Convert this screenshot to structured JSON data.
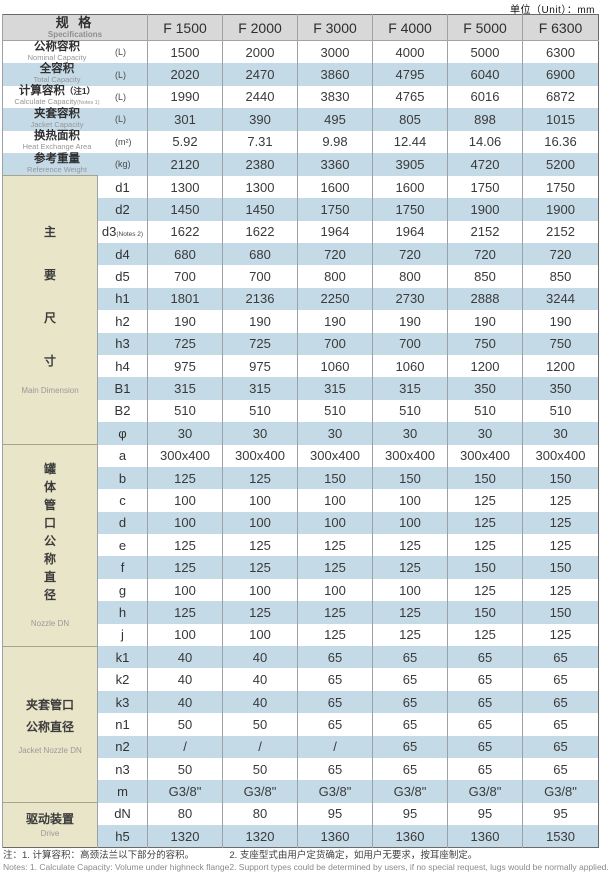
{
  "unit_note": "单位（Unit）：mm",
  "colors": {
    "stripe_blue": "#c5dae7",
    "section_beige": "#e9e5c9",
    "header_gray": "#d8d8d8",
    "border_dark": "#6a6a6a",
    "border_light": "#9aa2a8"
  },
  "header": {
    "spec_zh": "规 格",
    "spec_en": "Specifications",
    "models": [
      "F 1500",
      "F 2000",
      "F 3000",
      "F 4000",
      "F 5000",
      "F 6300"
    ]
  },
  "capacity_rows": [
    {
      "zh": "公称容积",
      "en": "Nominal Capacity",
      "unit": "(L)",
      "values": [
        "1500",
        "2000",
        "3000",
        "4000",
        "5000",
        "6300"
      ]
    },
    {
      "zh": "全容积",
      "en": "Total Capacity",
      "unit": "(L)",
      "values": [
        "2020",
        "2470",
        "3860",
        "4795",
        "6040",
        "6900"
      ]
    },
    {
      "zh": "计算容积",
      "zh_note": "（注1）",
      "en": "Calculate Capacity",
      "en_note": "(Notes 1)",
      "unit": "(L)",
      "values": [
        "1990",
        "2440",
        "3830",
        "4765",
        "6016",
        "6872"
      ]
    },
    {
      "zh": "夹套容积",
      "en": "Jacket Capacity",
      "unit": "(L)",
      "values": [
        "301",
        "390",
        "495",
        "805",
        "898",
        "1015"
      ]
    },
    {
      "zh": "换热面积",
      "en": "Heat Exchange Area",
      "unit": "(m²)",
      "values": [
        "5.92",
        "7.31",
        "9.98",
        "12.44",
        "14.06",
        "16.36"
      ]
    },
    {
      "zh": "参考重量",
      "en": "Reference Weight",
      "unit": "(kg)",
      "values": [
        "2120",
        "2380",
        "3360",
        "3905",
        "4720",
        "5200"
      ]
    }
  ],
  "sections": [
    {
      "id": "main-dimension",
      "label_chars": [
        "主",
        "要",
        "尺",
        "寸"
      ],
      "label_en": "Main Dimension",
      "rows": [
        {
          "sym": "d1",
          "values": [
            "1300",
            "1300",
            "1600",
            "1600",
            "1750",
            "1750"
          ]
        },
        {
          "sym": "d2",
          "values": [
            "1450",
            "1450",
            "1750",
            "1750",
            "1900",
            "1900"
          ]
        },
        {
          "sym": "d3",
          "sym_note": "(Notes 2)",
          "values": [
            "1622",
            "1622",
            "1964",
            "1964",
            "2152",
            "2152"
          ]
        },
        {
          "sym": "d4",
          "values": [
            "680",
            "680",
            "720",
            "720",
            "720",
            "720"
          ]
        },
        {
          "sym": "d5",
          "values": [
            "700",
            "700",
            "800",
            "800",
            "850",
            "850"
          ]
        },
        {
          "sym": "h1",
          "values": [
            "1801",
            "2136",
            "2250",
            "2730",
            "2888",
            "3244"
          ]
        },
        {
          "sym": "h2",
          "values": [
            "190",
            "190",
            "190",
            "190",
            "190",
            "190"
          ]
        },
        {
          "sym": "h3",
          "values": [
            "725",
            "725",
            "700",
            "700",
            "750",
            "750"
          ]
        },
        {
          "sym": "h4",
          "values": [
            "975",
            "975",
            "1060",
            "1060",
            "1200",
            "1200"
          ]
        },
        {
          "sym": "B1",
          "values": [
            "315",
            "315",
            "315",
            "315",
            "350",
            "350"
          ]
        },
        {
          "sym": "B2",
          "values": [
            "510",
            "510",
            "510",
            "510",
            "510",
            "510"
          ]
        },
        {
          "sym": "φ",
          "values": [
            "30",
            "30",
            "30",
            "30",
            "30",
            "30"
          ]
        }
      ]
    },
    {
      "id": "nozzle-dn",
      "label_chars": [
        "罐",
        "体",
        "管",
        "口",
        "公",
        "称",
        "直",
        "径"
      ],
      "label_en": "Nozzle DN",
      "rows": [
        {
          "sym": "a",
          "values": [
            "300x400",
            "300x400",
            "300x400",
            "300x400",
            "300x400",
            "300x400"
          ]
        },
        {
          "sym": "b",
          "values": [
            "125",
            "125",
            "150",
            "150",
            "150",
            "150"
          ]
        },
        {
          "sym": "c",
          "values": [
            "100",
            "100",
            "100",
            "100",
            "125",
            "125"
          ]
        },
        {
          "sym": "d",
          "values": [
            "100",
            "100",
            "100",
            "100",
            "125",
            "125"
          ]
        },
        {
          "sym": "e",
          "values": [
            "125",
            "125",
            "125",
            "125",
            "125",
            "125"
          ]
        },
        {
          "sym": "f",
          "values": [
            "125",
            "125",
            "125",
            "125",
            "150",
            "150"
          ]
        },
        {
          "sym": "g",
          "values": [
            "100",
            "100",
            "100",
            "100",
            "125",
            "125"
          ]
        },
        {
          "sym": "h",
          "values": [
            "125",
            "125",
            "125",
            "125",
            "150",
            "150"
          ]
        },
        {
          "sym": "j",
          "values": [
            "100",
            "100",
            "125",
            "125",
            "125",
            "125"
          ]
        }
      ]
    },
    {
      "id": "jacket-nozzle-dn",
      "label_lines": [
        "夹套管口",
        "公称直径"
      ],
      "label_en": "Jacket Nozzle DN",
      "rows": [
        {
          "sym": "k1",
          "values": [
            "40",
            "40",
            "65",
            "65",
            "65",
            "65"
          ]
        },
        {
          "sym": "k2",
          "values": [
            "40",
            "40",
            "65",
            "65",
            "65",
            "65"
          ]
        },
        {
          "sym": "k3",
          "values": [
            "40",
            "40",
            "65",
            "65",
            "65",
            "65"
          ]
        },
        {
          "sym": "n1",
          "values": [
            "50",
            "50",
            "65",
            "65",
            "65",
            "65"
          ]
        },
        {
          "sym": "n2",
          "values": [
            "/",
            "/",
            "/",
            "65",
            "65",
            "65"
          ]
        },
        {
          "sym": "n3",
          "values": [
            "50",
            "50",
            "65",
            "65",
            "65",
            "65"
          ]
        },
        {
          "sym": "m",
          "values": [
            "G3/8\"",
            "G3/8\"",
            "G3/8\"",
            "G3/8\"",
            "G3/8\"",
            "G3/8\""
          ]
        }
      ]
    },
    {
      "id": "drive",
      "label_lines": [
        "驱动装置"
      ],
      "label_en": "Drive",
      "rows": [
        {
          "sym": "dN",
          "values": [
            "80",
            "80",
            "95",
            "95",
            "95",
            "95"
          ]
        },
        {
          "sym": "h5",
          "values": [
            "1320",
            "1320",
            "1360",
            "1360",
            "1360",
            "1530"
          ]
        }
      ]
    }
  ],
  "notes": {
    "zh1": "注：1. 计算容积：高颈法兰以下部分的容积。",
    "en1": "Notes: 1. Calculate Capacity: Volume under highneck flange",
    "zh2": "2. 支座型式由用户定货确定，如用户无要求，按耳座制定。",
    "en2": "2. Support types could be determined by users, if no special request, lugs would be normally applied."
  }
}
